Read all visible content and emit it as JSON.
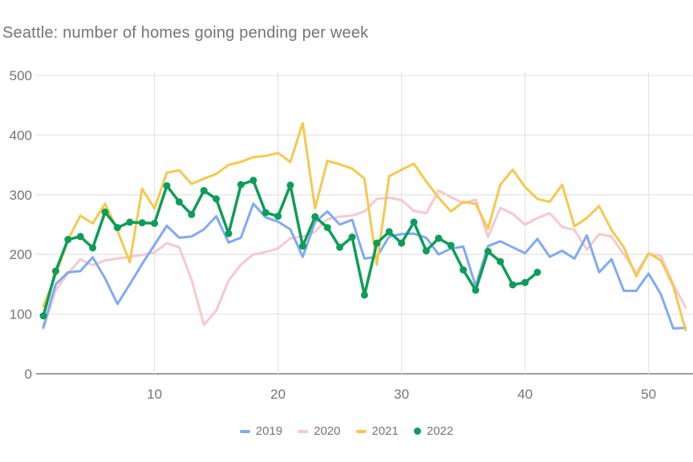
{
  "title": "Seattle: number of homes going pending per week",
  "chart_data": {
    "type": "line",
    "title": "Seattle: number of homes going pending per week",
    "xlabel": "",
    "ylabel": "",
    "x_unit": "week number",
    "xlim": [
      0.5,
      53.5
    ],
    "ylim": [
      0,
      500
    ],
    "x_ticks": [
      10,
      20,
      30,
      40,
      50
    ],
    "y_ticks": [
      0,
      100,
      200,
      300,
      400,
      500
    ],
    "grid": true,
    "legend_position": "bottom",
    "series": [
      {
        "name": "2019",
        "color": "#80aaf3",
        "markers": false,
        "values": [
          78,
          150,
          170,
          172,
          195,
          160,
          117,
          150,
          184,
          216,
          248,
          228,
          230,
          242,
          264,
          220,
          228,
          285,
          262,
          255,
          242,
          196,
          254,
          272,
          250,
          258,
          193,
          196,
          230,
          234,
          235,
          228,
          200,
          210,
          213,
          147,
          214,
          222,
          212,
          202,
          226,
          196,
          206,
          193,
          232,
          170,
          192,
          139,
          139,
          168,
          133,
          76,
          77
        ]
      },
      {
        "name": "2020",
        "color": "#f6c9cf",
        "markers": false,
        "values": [
          75,
          140,
          168,
          192,
          182,
          190,
          193,
          196,
          199,
          203,
          219,
          212,
          158,
          82,
          106,
          156,
          183,
          200,
          204,
          210,
          227,
          230,
          238,
          259,
          263,
          265,
          272,
          293,
          295,
          291,
          273,
          269,
          307,
          296,
          286,
          292,
          229,
          278,
          268,
          250,
          261,
          269,
          246,
          241,
          208,
          234,
          230,
          200,
          169,
          201,
          198,
          150,
          111
        ]
      },
      {
        "name": "2021",
        "color": "#f5c94e",
        "markers": false,
        "values": [
          113,
          165,
          225,
          265,
          252,
          285,
          240,
          187,
          310,
          277,
          337,
          341,
          318,
          327,
          335,
          350,
          355,
          363,
          365,
          370,
          355,
          420,
          277,
          357,
          351,
          344,
          327,
          183,
          331,
          342,
          352,
          322,
          295,
          272,
          288,
          285,
          243,
          317,
          342,
          313,
          293,
          288,
          317,
          247,
          261,
          281,
          241,
          212,
          163,
          202,
          190,
          147,
          73
        ]
      },
      {
        "name": "2022",
        "color": "#0d9d58",
        "markers": true,
        "values": [
          97,
          172,
          225,
          230,
          211,
          271,
          245,
          254,
          253,
          252,
          315,
          288,
          267,
          307,
          293,
          235,
          317,
          324,
          270,
          264,
          316,
          214,
          263,
          245,
          212,
          229,
          132,
          219,
          238,
          219,
          254,
          206,
          227,
          215,
          174,
          140,
          205,
          188,
          149,
          153,
          170
        ]
      }
    ]
  },
  "style": {
    "grid_color": "#e6e6e6",
    "axis_line_color": "#9e9e9e",
    "text_color": "#757575",
    "background": "#ffffff"
  }
}
